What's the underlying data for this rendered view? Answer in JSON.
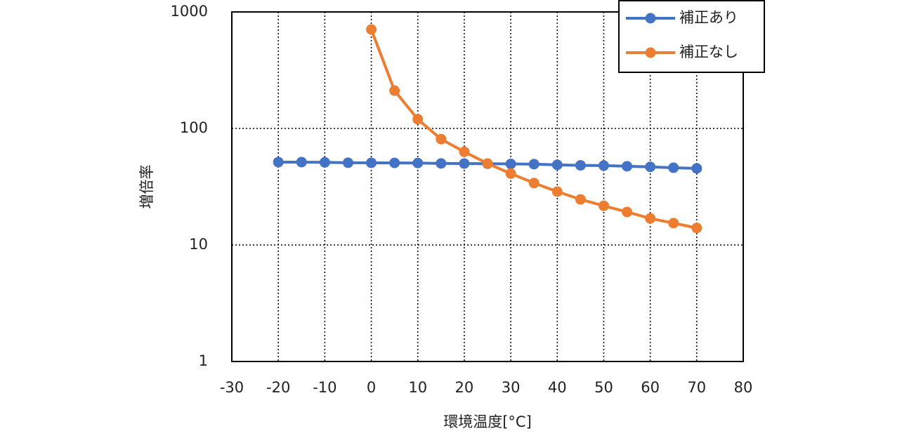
{
  "chart_data": {
    "type": "line",
    "xlabel": "環境温度[°C]",
    "ylabel": "増倍率",
    "log_y": true,
    "grid": true,
    "legend": "upper right",
    "xlim": [
      -30,
      80
    ],
    "xticks": [
      -30,
      -20,
      -10,
      0,
      10,
      20,
      30,
      40,
      50,
      60,
      70,
      80
    ],
    "ylim": [
      1,
      1000
    ],
    "yticks": [
      1,
      10,
      100,
      1000
    ],
    "series": [
      {
        "name": "補正あり",
        "color": "#4472c4",
        "x": [
          -20,
          -15,
          -10,
          -5,
          0,
          5,
          10,
          15,
          20,
          25,
          30,
          35,
          40,
          45,
          50,
          55,
          60,
          65,
          70
        ],
        "values": [
          51.4,
          51.4,
          51.2,
          50.8,
          50.7,
          50.6,
          50.5,
          50.1,
          50,
          49.8,
          49.6,
          49.4,
          48.7,
          48.2,
          48,
          47.4,
          46.8,
          46,
          45.4
        ]
      },
      {
        "name": "補正なし",
        "color": "#ed7d31",
        "x": [
          0,
          5,
          10,
          15,
          20,
          25,
          30,
          35,
          40,
          45,
          50,
          55,
          60,
          65,
          70
        ],
        "values": [
          707,
          211,
          120,
          81,
          63,
          50,
          41,
          34,
          28.7,
          24.6,
          21.7,
          19.2,
          16.9,
          15.4,
          14
        ]
      }
    ]
  }
}
